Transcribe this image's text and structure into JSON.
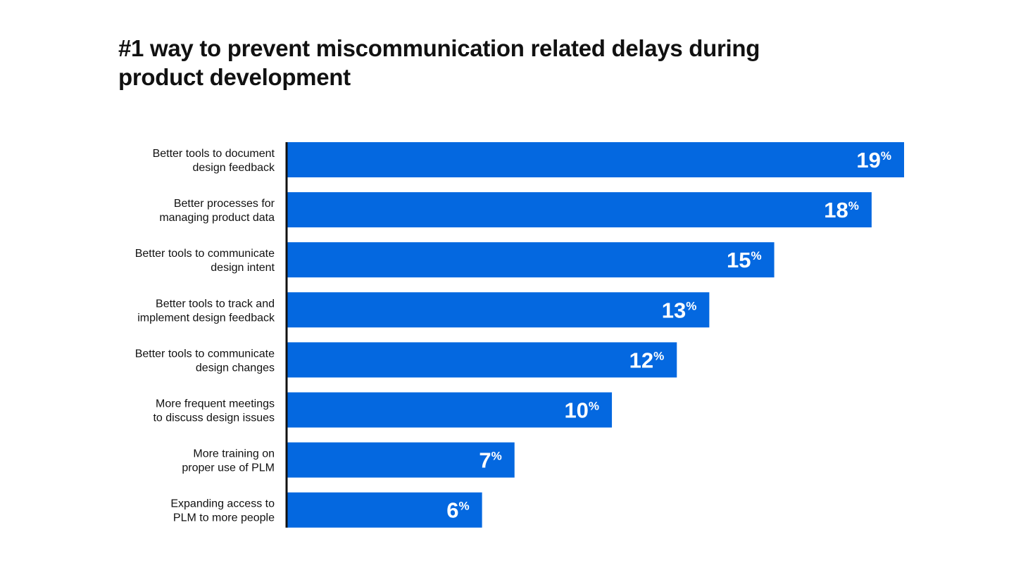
{
  "chart_data": {
    "type": "bar",
    "orientation": "horizontal",
    "title": "#1 way to prevent miscommunication related delays during product development",
    "categories": [
      [
        "Better tools to document",
        "design feedback"
      ],
      [
        "Better processes for",
        "managing product data"
      ],
      [
        "Better tools to communicate",
        "design intent"
      ],
      [
        "Better tools to track and",
        "implement design feedback"
      ],
      [
        "Better tools to communicate",
        "design changes"
      ],
      [
        "More frequent meetings",
        "to discuss design issues"
      ],
      [
        "More training on",
        "proper use of PLM"
      ],
      [
        "Expanding access to",
        "PLM to more people"
      ]
    ],
    "values": [
      19,
      18,
      15,
      13,
      12,
      10,
      7,
      6
    ],
    "value_suffix": "%",
    "xlim": [
      0,
      19
    ],
    "grid": false,
    "legend": "none",
    "colors": {
      "bar": "#0468e0",
      "axis": "#111111",
      "label": "#111111",
      "value_label": "#ffffff"
    }
  }
}
